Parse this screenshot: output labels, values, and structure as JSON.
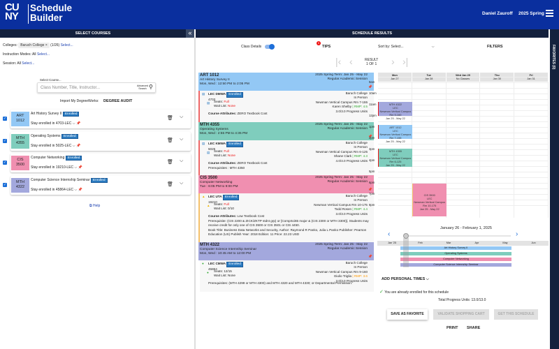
{
  "header": {
    "logo": "CUNY",
    "brand_line1": "Schedule",
    "brand_line2": "Builder",
    "user": "Daniel Zauroff",
    "term": "2025 Spring"
  },
  "left": {
    "title": "SELECT COURSES",
    "colleges_label": "Colleges:",
    "college_chip": "Baruch College",
    "chip_x": "×",
    "college_count": "(1/26)",
    "select": "Select...",
    "modes_label": "Instruction Modes:",
    "modes_value": "All",
    "session_label": "Session:",
    "session_value": "All",
    "search_label": "Select Course...",
    "search_placeholder": "Class Number, Title, Instructor...",
    "advanced": "Advanced Search",
    "import_label": "Import My DegreeWorks:",
    "degree_audit": "DEGREE AUDIT",
    "help": "Help",
    "courses": [
      {
        "code1": "ART",
        "code2": "1012",
        "title": "Art History Survey II",
        "badge": "Enrolled",
        "stay": "Stay enrolled in 4703-LEC",
        "color": "#93c8f5"
      },
      {
        "code1": "MTH",
        "code2": "4355",
        "title": "Operating Systems",
        "badge": "Enrolled",
        "stay": "Stay enrolled in 5025-LEC",
        "color": "#7fcdbd"
      },
      {
        "code1": "CIS",
        "code2": "3500",
        "title": "Computer Networking",
        "badge": "Enrolled",
        "stay": "Stay enrolled in 19210-LEC",
        "color": "#f08fb0"
      },
      {
        "code1": "MTH",
        "code2": "4322",
        "title": "Computer Science Internship Seminar",
        "badge": "Enrolled",
        "stay": "Stay enrolled in 45864-LEC",
        "color": "#a3a8dd"
      }
    ]
  },
  "results": {
    "title": "SCHEDULE RESULTS",
    "class_details": "Class Details",
    "tips": "TIPS",
    "tips_count": "0",
    "sort_label": "Sort by:",
    "sort_value": "Select...",
    "filters": "FILTERS",
    "result_label": "RESULT",
    "result_count": "1 OF 1",
    "favorites": "FAVORITES (0)",
    "sections": [
      {
        "code": "ART 1012",
        "title": "Art History Survey II",
        "time": "Mon, Wed : 12:50 PM to 2:05 PM",
        "term": "2025 Spring Term: Jan 25 - May 22",
        "session": "Regular Academic Session",
        "color": "#93c8f5",
        "comp": "LEC DMWA",
        "badge": "Enrolled",
        "num": "4703",
        "seats_label": "Seats:",
        "seats": "Full",
        "wait_label": "Wait List:",
        "wait": "None",
        "college": "Baruch College",
        "mode": "In Person",
        "room": "Newman Vertical Campus Rm 7-155",
        "instructor": "Karen Shelby",
        "rmp": "| RMP: 4.5",
        "units": "3.0/3.0 Progress Units",
        "attr_label": "Course Attributes:",
        "attr": "ZERO Textbook Cost"
      },
      {
        "code": "MTH 4355",
        "title": "Operating Systems",
        "time": "Mon, Wed : 2:55 PM to 4:35 PM",
        "term": "2025 Spring Term: Jan 25 - May 22",
        "session": "Regular Academic Session",
        "color": "#7fcdbd",
        "comp": "LEC KMWA",
        "badge": "Enrolled",
        "num": "5025",
        "seats_label": "Seats:",
        "seats": "Full",
        "wait_label": "Wait List:",
        "wait": "None",
        "college": "Baruch College",
        "mode": "In Person",
        "room": "Newman Vertical Campus Rm 6-125",
        "instructor": "Shane Clark",
        "rmp": "| RMP: 4.3",
        "units": "4.0/4.0 Progress Units",
        "attr_label": "Course Attributes:",
        "attr": "ZERO Textbook Cost",
        "prereq": "Prerequisites : MTH 4350"
      },
      {
        "code": "CIS 3500",
        "title": "Computer Networking",
        "time": "Tue : 6:05 PM to 9:00 PM",
        "term": "2025 Spring Term: Jan 25 - May 22",
        "session": "Regular Academic Session",
        "color": "#f08fb0",
        "comp": "LEC UTA",
        "badge": "Enrolled",
        "num": "19210",
        "seats_label": "Seats:",
        "seats": "Full",
        "wait_label": "Wait List:",
        "wait": "0/10",
        "college": "Baruch College",
        "mode": "In Person",
        "room": "Newman Vertical Campus Rm 10-175",
        "instructor": "Todd Rosen",
        "rmp": "| RMP: 4.4",
        "units": "3.0/3.0 Progress Units",
        "attr_label": "Course Attributes:",
        "attr": "Low Textbook Cost",
        "prereq": "Prerequisite: (CIS 2200 & ZICK/ZKTP stdnt grp) or [CompSci65 major & (CIS 2300 or MTH 3300)]. Students may receive credit for only one of CIS 3500 or CIS 3501 or CIS 4450.",
        "book": "Book Title: Business Data Networks and Security,   Author: Raymond R Panko, Julia L Panko   Publisher: Pearson Education (US)   Publish Year: 2018   Edition: 11   Price: 22.23 USD"
      },
      {
        "code": "MTH 4322",
        "title": "Computer Science Internship Seminar",
        "time": "Mon, Wed : 10:45 AM to 12:00 PM",
        "term": "2025 Spring Term: Jan 25 - May 22",
        "session": "Regular Academic Session",
        "color": "#a3a8dd",
        "comp": "LEC CMWA",
        "badge": "Enrolled",
        "num": "45864",
        "seats_label": "Seats:",
        "seats": "12/15",
        "wait_label": "Wait List:",
        "wait": "None",
        "college": "Baruch College",
        "mode": "In Person",
        "room": "Newman Vertical Campus Rm 9-160",
        "instructor": "Giulio Triglia",
        "rmp": "| RMP: 3.6",
        "units": "3.0/3.0 Progress Units",
        "prereq": "Prerequisites: (MTH 4299 or MTH 4300) and MTH 4320 and MTH 4330; or Departmental Permission."
      }
    ]
  },
  "calendar": {
    "days": [
      {
        "d": "Mon",
        "date": "Jan 27",
        "note": ""
      },
      {
        "d": "Tue",
        "date": "Jan 28",
        "note": ""
      },
      {
        "d": "Wed Jan 29",
        "date": "No Classes",
        "note": ""
      },
      {
        "d": "Thu",
        "date": "Jan 30",
        "note": ""
      },
      {
        "d": "Fri",
        "date": "Jan 31",
        "note": ""
      }
    ],
    "hours": [
      "9am",
      "10am",
      "11am",
      "12pm",
      "1pm",
      "2pm",
      "3pm",
      "4pm",
      "5pm",
      "6pm",
      "7pm",
      "8pm"
    ],
    "events": [
      {
        "day": 0,
        "start": 10.75,
        "end": 12.0,
        "code": "MTH 4322",
        "type": "LEC",
        "room": "Newman Vertical Campus Rm 9-160",
        "dates": "Jan 25 - May 22",
        "color": "#a3a8dd"
      },
      {
        "day": 0,
        "start": 12.83,
        "end": 14.08,
        "code": "ART 1012",
        "type": "LEC",
        "room": "Newman Vertical Campus Rm 7-155",
        "dates": "Jan 25 - May 22",
        "color": "#93c8f5"
      },
      {
        "day": 0,
        "start": 14.92,
        "end": 16.58,
        "code": "MTH 4355",
        "type": "LEC",
        "room": "Newman Vertical Campus Rm 6-125",
        "dates": "Jan 25 - May 22",
        "color": "#7fcdbd"
      },
      {
        "day": 1,
        "start": 18.08,
        "end": 21.0,
        "code": "CIS 3500",
        "type": "LEC",
        "room": "Newman Vertical Campus Rm 10-175",
        "dates": "Jan 25 - May 22",
        "color": "#f08fb0"
      }
    ],
    "week_range": "January 26 - February 1, 2025",
    "months": [
      "Jan '25",
      "Feb",
      "Mar",
      "Apr",
      "May",
      "Jun"
    ],
    "timeline": [
      "Art History Survey II",
      "Operating Systems",
      "Computer Networking",
      "Computer Science Internship Seminar"
    ]
  },
  "footer": {
    "add_personal": "ADD PERSONAL TIMES",
    "enrolled_msg": "You are already enrolled for this schedule",
    "units": "Total Progress Units: 13.0/13.0",
    "save": "SAVE AS FAVORITE",
    "validate": "VALIDATE SHOPPING CART",
    "get": "GET THIS SCHEDULE",
    "print": "PRINT",
    "share": "SHARE"
  }
}
